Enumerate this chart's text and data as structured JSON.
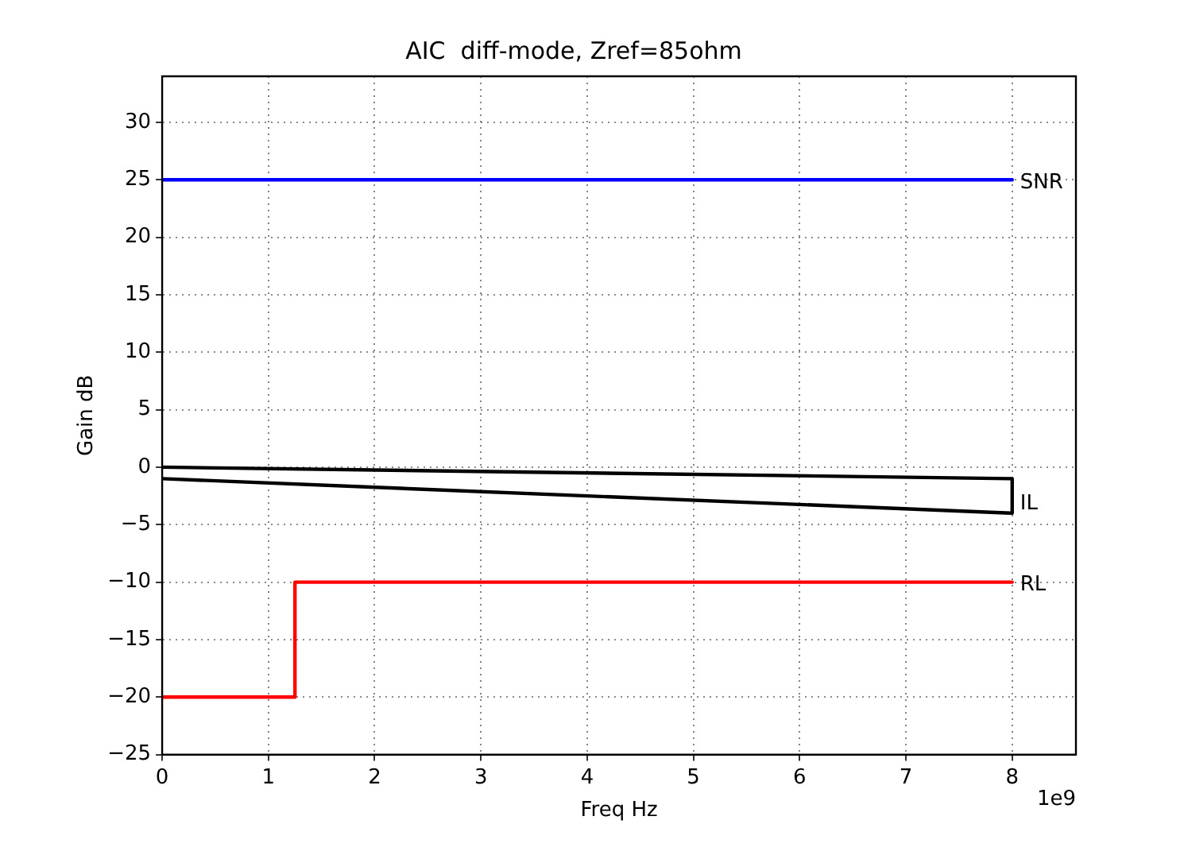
{
  "chart_data": {
    "type": "line",
    "title": "AIC  diff-mode, Zref=85ohm",
    "xlabel": "Freq Hz",
    "ylabel": "Gain dB",
    "xlim": [
      0,
      8.6
    ],
    "ylim": [
      -25,
      34
    ],
    "xticks": [
      0,
      1,
      2,
      3,
      4,
      5,
      6,
      7,
      8
    ],
    "yticks": [
      {
        "value": -25,
        "label": "−25"
      },
      {
        "value": -20,
        "label": "−20"
      },
      {
        "value": -15,
        "label": "−15"
      },
      {
        "value": -10,
        "label": "−10"
      },
      {
        "value": -5,
        "label": "−5"
      },
      0,
      5,
      10,
      15,
      20,
      25,
      30
    ],
    "series": [
      {
        "name": "SNR",
        "color": "#0000ff",
        "x": [
          0,
          8
        ],
        "values": [
          25,
          25
        ]
      },
      {
        "name": "IL",
        "color": "#000000",
        "x": [
          0,
          8,
          8,
          0
        ],
        "values": [
          0,
          -1,
          -4,
          -1
        ]
      },
      {
        "name": "RL",
        "color": "#ff0000",
        "x": [
          0,
          1.25,
          1.25,
          8
        ],
        "values": [
          -20,
          -20,
          -10,
          -10
        ]
      }
    ],
    "annotations": [
      "1e9"
    ],
    "grid": true,
    "legend": false,
    "marker": "none",
    "line_style": "solid"
  }
}
